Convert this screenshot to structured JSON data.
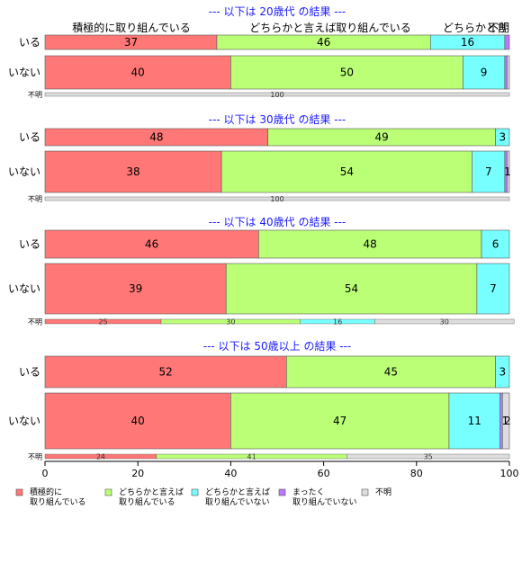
{
  "colors": {
    "positive": "#ff7777",
    "somewhat_positive": "#bbff77",
    "somewhat_negative": "#77ffff",
    "negative": "#bb77ff",
    "unknown": "#dddddd",
    "title": "#1a1aff"
  },
  "chart_data": {
    "type": "bar",
    "orientation": "horizontal-stacked-percent",
    "xlim": [
      0,
      100
    ],
    "xticks": [
      0,
      20,
      40,
      60,
      80,
      100
    ],
    "category_headers": [
      "積極的に取り組んでいる",
      "どちらかと言えば取り組んでいる",
      "どちらかと言",
      "不明"
    ],
    "legend": [
      {
        "key": "positive",
        "line1": "積極的に",
        "line2": "取り組んでいる"
      },
      {
        "key": "somewhat_positive",
        "line1": "どちらかと言えば",
        "line2": "取り組んでいる"
      },
      {
        "key": "somewhat_negative",
        "line1": "どちらかと言えば",
        "line2": "取り組んでいない"
      },
      {
        "key": "negative",
        "line1": "まったく",
        "line2": "取り組んでいない"
      },
      {
        "key": "unknown",
        "line1": "不明",
        "line2": ""
      }
    ],
    "panels": [
      {
        "title": "--- 以下は 20歳代 の結果 ---",
        "rows": [
          {
            "label": "いる",
            "values": [
              37,
              46,
              16,
              1,
              0
            ],
            "labels": [
              "37",
              "46",
              "16",
              "",
              ""
            ]
          },
          {
            "label": "いない",
            "values": [
              40,
              50,
              9,
              0.5,
              0.5
            ],
            "labels": [
              "40",
              "50",
              "9",
              "",
              ""
            ]
          },
          {
            "label": "不明",
            "values": [
              0,
              0,
              0,
              0,
              100
            ],
            "labels": [
              "",
              "",
              "",
              "",
              "100"
            ]
          }
        ]
      },
      {
        "title": "--- 以下は 30歳代 の結果 ---",
        "rows": [
          {
            "label": "いる",
            "values": [
              48,
              49,
              3,
              0,
              0
            ],
            "labels": [
              "48",
              "49",
              "3",
              "",
              ""
            ]
          },
          {
            "label": "いない",
            "values": [
              38,
              54,
              7,
              0.5,
              0.5
            ],
            "labels": [
              "38",
              "54",
              "7",
              "",
              "1"
            ]
          },
          {
            "label": "不明",
            "values": [
              0,
              0,
              0,
              0,
              100
            ],
            "labels": [
              "",
              "",
              "",
              "",
              "100"
            ]
          }
        ]
      },
      {
        "title": "--- 以下は 40歳代 の結果 ---",
        "rows": [
          {
            "label": "いる",
            "values": [
              46,
              48,
              6,
              0,
              0
            ],
            "labels": [
              "46",
              "48",
              "6",
              "",
              ""
            ]
          },
          {
            "label": "いない",
            "values": [
              39,
              54,
              7,
              0,
              0
            ],
            "labels": [
              "39",
              "54",
              "7",
              "",
              ""
            ]
          },
          {
            "label": "不明",
            "values": [
              25,
              30,
              16,
              0,
              30
            ],
            "labels": [
              "25",
              "30",
              "16",
              "",
              "30"
            ]
          }
        ]
      },
      {
        "title": "--- 以下は 50歳以上 の結果 ---",
        "rows": [
          {
            "label": "いる",
            "values": [
              52,
              45,
              3,
              0,
              0
            ],
            "labels": [
              "52",
              "45",
              "3",
              "",
              ""
            ]
          },
          {
            "label": "いない",
            "values": [
              40,
              47,
              11,
              0.5,
              1.5
            ],
            "labels": [
              "40",
              "47",
              "11",
              "1",
              "2"
            ]
          },
          {
            "label": "不明",
            "values": [
              24,
              41,
              0,
              0,
              35
            ],
            "labels": [
              "24",
              "41",
              "",
              "",
              "35"
            ]
          }
        ]
      }
    ]
  }
}
